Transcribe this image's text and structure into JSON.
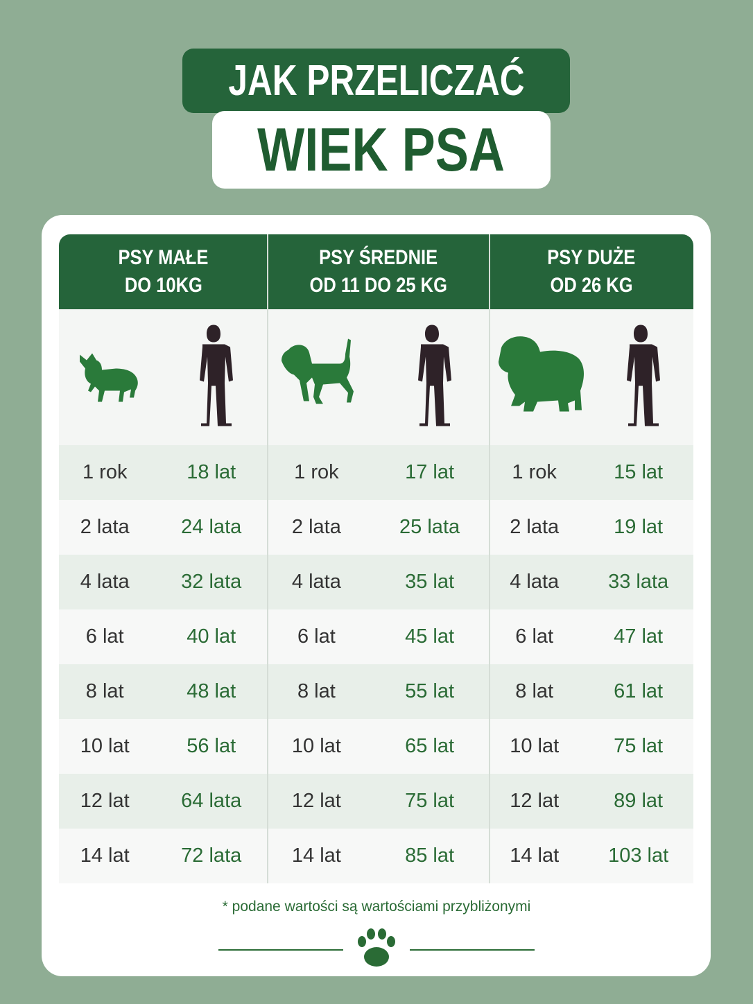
{
  "title": {
    "line1": "JAK PRZELICZAĆ",
    "line2": "WIEK PSA"
  },
  "table": {
    "columns": [
      {
        "header": [
          "PSY MAŁE",
          "DO 10KG"
        ],
        "rows": [
          [
            "1 rok",
            "18 lat"
          ],
          [
            "2 lata",
            "24 lata"
          ],
          [
            "4 lata",
            "32 lata"
          ],
          [
            "6 lat",
            "40 lat"
          ],
          [
            "8 lat",
            "48 lat"
          ],
          [
            "10 lat",
            "56 lat"
          ],
          [
            "12 lat",
            "64 lata"
          ],
          [
            "14 lat",
            "72 lata"
          ]
        ]
      },
      {
        "header": [
          "PSY ŚREDNIE",
          "OD 11 DO 25 KG"
        ],
        "rows": [
          [
            "1 rok",
            "17 lat"
          ],
          [
            "2 lata",
            "25 lata"
          ],
          [
            "4 lata",
            "35 lat"
          ],
          [
            "6 lat",
            "45 lat"
          ],
          [
            "8 lat",
            "55 lat"
          ],
          [
            "10 lat",
            "65 lat"
          ],
          [
            "12 lat",
            "75 lat"
          ],
          [
            "14 lat",
            "85 lat"
          ]
        ]
      },
      {
        "header": [
          "PSY DUŻE",
          "OD 26 KG"
        ],
        "rows": [
          [
            "1 rok",
            "15 lat"
          ],
          [
            "2 lata",
            "19 lat"
          ],
          [
            "4 lata",
            "33 lata"
          ],
          [
            "6 lat",
            "47 lat"
          ],
          [
            "8 lat",
            "61 lat"
          ],
          [
            "10 lat",
            "75 lat"
          ],
          [
            "12 lat",
            "89 lat"
          ],
          [
            "14 lat",
            "103 lat"
          ]
        ]
      }
    ]
  },
  "footnote": "* podane wartości są wartościami przybliżonymi"
}
